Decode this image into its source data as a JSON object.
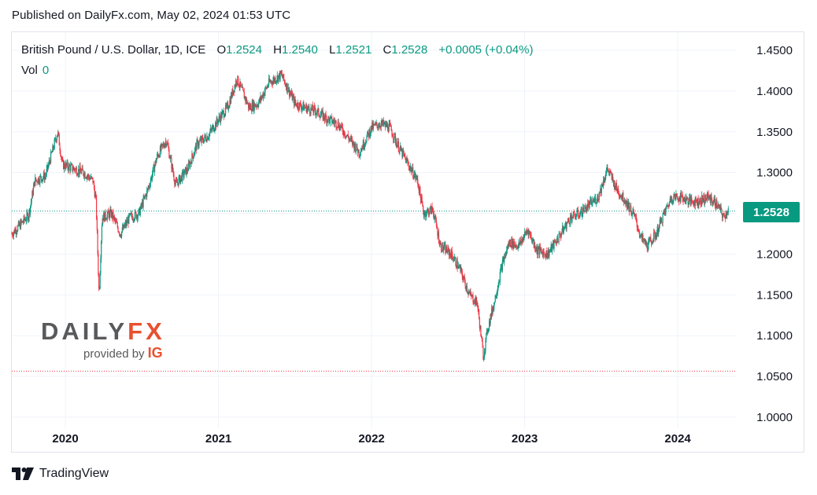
{
  "header": {
    "published": "Published on DailyFx.com, May 02, 2024 01:53 UTC"
  },
  "legend": {
    "symbol": "British Pound / U.S. Dollar, 1D, ICE",
    "open_label": "O",
    "open": "1.2524",
    "high_label": "H",
    "high": "1.2540",
    "low_label": "L",
    "low": "1.2521",
    "close_label": "C",
    "close": "1.2528",
    "change": "+0.0005 (+0.04%)",
    "vol_label": "Vol",
    "vol": "0"
  },
  "price_tag": "1.2528",
  "logo": {
    "text_main": "DAILY",
    "text_accent": "FX",
    "provided_by": "provided by",
    "brand": "IG"
  },
  "footer": {
    "brand": "TradingView"
  },
  "colors": {
    "up": "#089981",
    "down": "#f23645",
    "grid": "#f0f3fa",
    "axis_text": "#131722",
    "dotted_current": "#089981",
    "dotted_low": "#f23645"
  },
  "chart_data": {
    "type": "candlestick",
    "title": "British Pound / U.S. Dollar, 1D, ICE",
    "interval": "1D",
    "ylim": [
      1.0,
      1.45
    ],
    "yticks": [
      1.0,
      1.05,
      1.1,
      1.15,
      1.2,
      1.25,
      1.3,
      1.35,
      1.4,
      1.45
    ],
    "ytick_labels": [
      "1.0000",
      "1.0500",
      "1.1000",
      "1.1500",
      "1.2000",
      "1.2500",
      "1.3000",
      "1.3500",
      "1.4000",
      "1.4500"
    ],
    "xlim": [
      2019.65,
      2024.38
    ],
    "xticks": [
      2020,
      2021,
      2022,
      2023,
      2024
    ],
    "xtick_labels": [
      "2020",
      "2021",
      "2022",
      "2023",
      "2024"
    ],
    "current_price": 1.2528,
    "reference_low_line": 1.0565,
    "price_path": [
      [
        2019.65,
        1.225
      ],
      [
        2019.7,
        1.235
      ],
      [
        2019.76,
        1.248
      ],
      [
        2019.8,
        1.29
      ],
      [
        2019.87,
        1.296
      ],
      [
        2019.95,
        1.35
      ],
      [
        2019.98,
        1.31
      ],
      [
        2020.05,
        1.305
      ],
      [
        2020.12,
        1.3
      ],
      [
        2020.18,
        1.29
      ],
      [
        2020.2,
        1.265
      ],
      [
        2020.22,
        1.15
      ],
      [
        2020.24,
        1.245
      ],
      [
        2020.3,
        1.25
      ],
      [
        2020.36,
        1.225
      ],
      [
        2020.42,
        1.245
      ],
      [
        2020.48,
        1.25
      ],
      [
        2020.54,
        1.28
      ],
      [
        2020.6,
        1.32
      ],
      [
        2020.66,
        1.34
      ],
      [
        2020.72,
        1.285
      ],
      [
        2020.8,
        1.305
      ],
      [
        2020.86,
        1.335
      ],
      [
        2020.93,
        1.345
      ],
      [
        2021.0,
        1.365
      ],
      [
        2021.06,
        1.38
      ],
      [
        2021.12,
        1.415
      ],
      [
        2021.2,
        1.38
      ],
      [
        2021.26,
        1.385
      ],
      [
        2021.33,
        1.41
      ],
      [
        2021.41,
        1.42
      ],
      [
        2021.5,
        1.385
      ],
      [
        2021.56,
        1.38
      ],
      [
        2021.64,
        1.375
      ],
      [
        2021.72,
        1.365
      ],
      [
        2021.78,
        1.36
      ],
      [
        2021.84,
        1.345
      ],
      [
        2021.92,
        1.325
      ],
      [
        2022.0,
        1.355
      ],
      [
        2022.06,
        1.36
      ],
      [
        2022.12,
        1.355
      ],
      [
        2022.18,
        1.33
      ],
      [
        2022.24,
        1.31
      ],
      [
        2022.3,
        1.29
      ],
      [
        2022.34,
        1.25
      ],
      [
        2022.4,
        1.255
      ],
      [
        2022.45,
        1.21
      ],
      [
        2022.52,
        1.2
      ],
      [
        2022.58,
        1.18
      ],
      [
        2022.64,
        1.15
      ],
      [
        2022.69,
        1.14
      ],
      [
        2022.73,
        1.075
      ],
      [
        2022.76,
        1.11
      ],
      [
        2022.8,
        1.14
      ],
      [
        2022.85,
        1.185
      ],
      [
        2022.9,
        1.215
      ],
      [
        2022.96,
        1.21
      ],
      [
        2023.02,
        1.23
      ],
      [
        2023.08,
        1.205
      ],
      [
        2023.15,
        1.2
      ],
      [
        2023.22,
        1.22
      ],
      [
        2023.3,
        1.245
      ],
      [
        2023.36,
        1.25
      ],
      [
        2023.42,
        1.26
      ],
      [
        2023.48,
        1.27
      ],
      [
        2023.54,
        1.305
      ],
      [
        2023.6,
        1.28
      ],
      [
        2023.66,
        1.265
      ],
      [
        2023.72,
        1.245
      ],
      [
        2023.76,
        1.22
      ],
      [
        2023.8,
        1.21
      ],
      [
        2023.86,
        1.225
      ],
      [
        2023.9,
        1.245
      ],
      [
        2023.96,
        1.27
      ],
      [
        2024.02,
        1.27
      ],
      [
        2024.08,
        1.265
      ],
      [
        2024.14,
        1.265
      ],
      [
        2024.2,
        1.27
      ],
      [
        2024.26,
        1.26
      ],
      [
        2024.3,
        1.245
      ],
      [
        2024.33,
        1.255
      ]
    ]
  }
}
